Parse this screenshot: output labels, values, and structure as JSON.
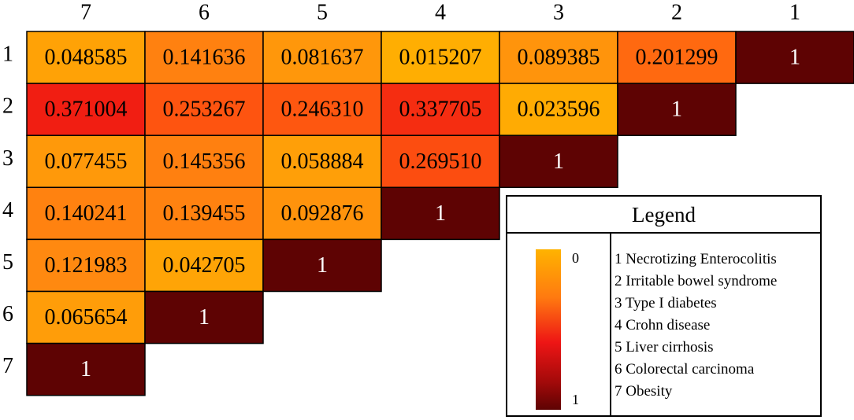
{
  "chart_data": {
    "type": "heatmap",
    "column_labels": [
      "7",
      "6",
      "5",
      "4",
      "3",
      "2",
      "1"
    ],
    "row_labels": [
      "1",
      "2",
      "3",
      "4",
      "5",
      "6",
      "7"
    ],
    "cells": [
      [
        "0.048585",
        "0.141636",
        "0.081637",
        "0.015207",
        "0.089385",
        "0.201299",
        "1"
      ],
      [
        "0.371004",
        "0.253267",
        "0.246310",
        "0.337705",
        "0.023596",
        "1"
      ],
      [
        "0.077455",
        "0.145356",
        "0.058884",
        "0.269510",
        "1"
      ],
      [
        "0.140241",
        "0.139455",
        "0.092876",
        "1"
      ],
      [
        "0.121983",
        "0.042705",
        "1"
      ],
      [
        "0.065654",
        "1"
      ],
      [
        "1"
      ]
    ],
    "colorscale": {
      "min_label": "0",
      "max_label": "1",
      "stops": [
        "#ffb300",
        "#ff8a10",
        "#ff5a10",
        "#f01a12",
        "#5e0303"
      ]
    },
    "legend": {
      "title": "Legend",
      "items": [
        "1 Necrotizing Enterocolitis",
        "2 Irritable bowel syndrome",
        "3 Type I diabetes",
        "4 Crohn disease",
        "5 Liver cirrhosis",
        "6 Colorectal carcinoma",
        "7 Obesity"
      ]
    }
  }
}
